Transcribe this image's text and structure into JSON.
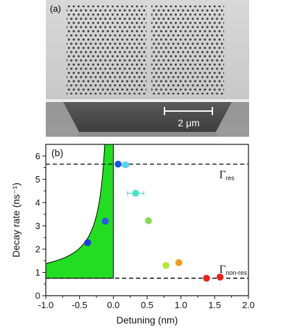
{
  "panel_a": {
    "label": "(a)",
    "scalebar_text": "2 μm"
  },
  "chart_data": {
    "type": "scatter",
    "panel_label": "(b)",
    "xlabel": "Detuning (nm)",
    "ylabel": "Decay rate (ns⁻¹)",
    "xlim": [
      -1.0,
      2.0
    ],
    "ylim": [
      0,
      6.5
    ],
    "xticks": [
      "-1.0",
      "-0.5",
      "0.0",
      "0.5",
      "1.0",
      "1.5",
      "2.0"
    ],
    "xtick_values": [
      -1.0,
      -0.5,
      0.0,
      0.5,
      1.0,
      1.5,
      2.0
    ],
    "yticks": [
      "0",
      "1",
      "2",
      "3",
      "4",
      "5",
      "6"
    ],
    "ytick_values": [
      0,
      1,
      2,
      3,
      4,
      5,
      6
    ],
    "hlines": [
      {
        "label": "Γres",
        "y": 5.65
      },
      {
        "label": "Γnon-res",
        "y": 0.75
      }
    ],
    "points": [
      {
        "x": -0.38,
        "y": 2.28,
        "color": "#1f3fd6"
      },
      {
        "x": -0.12,
        "y": 3.2,
        "color": "#2a5ae0"
      },
      {
        "x": 0.07,
        "y": 5.65,
        "color": "#1a55d8"
      },
      {
        "x": 0.18,
        "y": 5.62,
        "color": "#59d2ee",
        "xerr": 0.05
      },
      {
        "x": 0.33,
        "y": 4.4,
        "color": "#4ce0c8",
        "xerr": 0.12
      },
      {
        "x": 0.52,
        "y": 3.22,
        "color": "#86dc55"
      },
      {
        "x": 0.78,
        "y": 1.3,
        "color": "#b6e83a"
      },
      {
        "x": 0.97,
        "y": 1.42,
        "color": "#f39a1e"
      },
      {
        "x": 1.38,
        "y": 0.75,
        "color": "#e8231e"
      },
      {
        "x": 1.58,
        "y": 0.8,
        "color": "#e8231e"
      }
    ],
    "fill_region": {
      "color": "#22dd22",
      "x_from": -1.0,
      "x_to": 0.0,
      "asymptote_x": 0.0,
      "base_y": 0.75
    }
  },
  "colors": {
    "axis": "#111111",
    "dashed": "#222222",
    "fill": "#22dd22",
    "sem_bg": "#8a8a8a",
    "sem_slab": "#d3d3d3",
    "sem_hole": "#3a3a3a"
  }
}
